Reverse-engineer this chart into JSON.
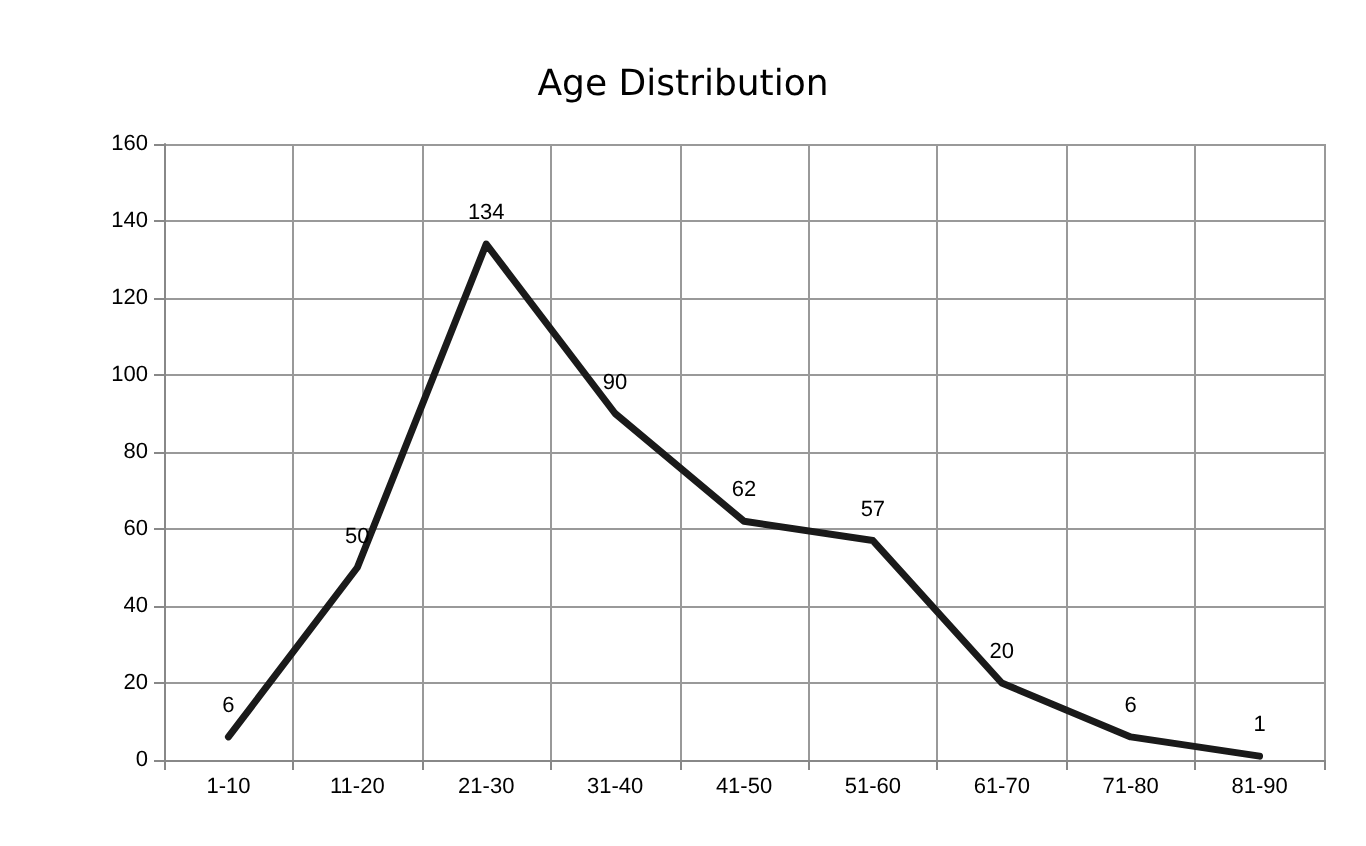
{
  "chart_data": {
    "type": "line",
    "title": "Age Distribution",
    "categories": [
      "1-10",
      "11-20",
      "21-30",
      "31-40",
      "41-50",
      "51-60",
      "61-70",
      "71-80",
      "81-90"
    ],
    "series": [
      {
        "color": "#1a1a1a",
        "values": [
          6,
          50,
          134,
          90,
          62,
          57,
          20,
          6,
          1
        ]
      }
    ],
    "ylim": [
      0,
      160
    ],
    "yticks": [
      0,
      20,
      40,
      60,
      80,
      100,
      120,
      140,
      160
    ],
    "grid": true,
    "data_labels": true
  }
}
